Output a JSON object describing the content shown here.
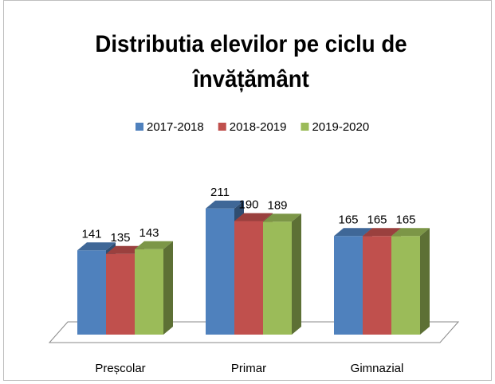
{
  "chart_data": {
    "type": "bar3d",
    "title": "Distributia elevilor pe ciclu de învățământ",
    "categories": [
      "Preșcolar",
      "Primar",
      "Gimnazial"
    ],
    "series": [
      {
        "name": "2017-2018",
        "color": "#4f81bd",
        "values": [
          141,
          211,
          165
        ]
      },
      {
        "name": "2018-2019",
        "color": "#c0504d",
        "values": [
          135,
          190,
          165
        ]
      },
      {
        "name": "2019-2020",
        "color": "#9bbb59",
        "values": [
          143,
          189,
          165
        ]
      }
    ],
    "legend": "top"
  }
}
